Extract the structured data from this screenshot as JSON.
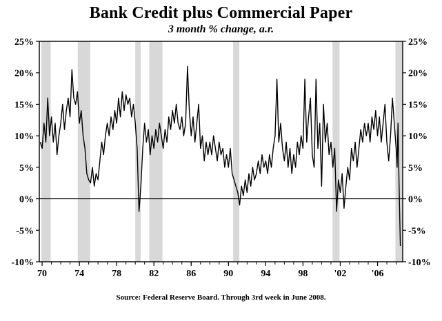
{
  "chart_data": {
    "type": "line",
    "title": "Bank Credit plus Commercial Paper",
    "subtitle": "3 month % change, a.r.",
    "source": "Source: Federal Reserve Board. Through 3rd week in June 2008.",
    "xlabel": "",
    "ylabel": "",
    "x_range": [
      1969.7,
      2008.7
    ],
    "y_range": [
      -10,
      25
    ],
    "y_ticks": [
      -10,
      -5,
      0,
      5,
      10,
      15,
      20,
      25
    ],
    "y_tick_suffix": "%",
    "x_minor_tick_step": 1,
    "x_ticks_labeled": [
      {
        "x": 1970,
        "label": "70"
      },
      {
        "x": 1974,
        "label": "74"
      },
      {
        "x": 1978,
        "label": "78"
      },
      {
        "x": 1982,
        "label": "82"
      },
      {
        "x": 1986,
        "label": "86"
      },
      {
        "x": 1990,
        "label": "90"
      },
      {
        "x": 1994,
        "label": "94"
      },
      {
        "x": 1998,
        "label": "98"
      },
      {
        "x": 2002,
        "label": "'02"
      },
      {
        "x": 2006,
        "label": "'06"
      }
    ],
    "grid": false,
    "legend": "none",
    "zero_line": true,
    "line_color": "#000000",
    "band_color": "#d8d8d8",
    "recession_bands": [
      [
        1969.92,
        1970.92
      ],
      [
        1973.83,
        1975.17
      ],
      [
        1980.0,
        1980.58
      ],
      [
        1981.5,
        1982.92
      ],
      [
        1990.5,
        1991.17
      ],
      [
        2001.17,
        2001.92
      ],
      [
        2007.92,
        2008.7
      ]
    ],
    "series": [
      {
        "name": "Bank credit plus commercial paper, 3-month % change, annualized",
        "points": [
          [
            1969.8,
            9
          ],
          [
            1970.0,
            8
          ],
          [
            1970.2,
            12
          ],
          [
            1970.4,
            9
          ],
          [
            1970.6,
            16
          ],
          [
            1970.8,
            10
          ],
          [
            1971.0,
            13
          ],
          [
            1971.2,
            9
          ],
          [
            1971.4,
            12
          ],
          [
            1971.6,
            7
          ],
          [
            1971.8,
            10
          ],
          [
            1972.0,
            12
          ],
          [
            1972.2,
            15
          ],
          [
            1972.4,
            11
          ],
          [
            1972.6,
            14
          ],
          [
            1972.8,
            16
          ],
          [
            1973.0,
            13
          ],
          [
            1973.2,
            20.5
          ],
          [
            1973.4,
            16
          ],
          [
            1973.6,
            15
          ],
          [
            1973.8,
            17
          ],
          [
            1974.0,
            12
          ],
          [
            1974.2,
            14
          ],
          [
            1974.4,
            10
          ],
          [
            1974.6,
            8
          ],
          [
            1974.8,
            4
          ],
          [
            1975.0,
            3
          ],
          [
            1975.2,
            2.5
          ],
          [
            1975.4,
            5
          ],
          [
            1975.6,
            2
          ],
          [
            1975.8,
            4
          ],
          [
            1976.0,
            3
          ],
          [
            1976.2,
            6
          ],
          [
            1976.4,
            9
          ],
          [
            1976.6,
            7
          ],
          [
            1976.8,
            10
          ],
          [
            1977.0,
            12
          ],
          [
            1977.2,
            10
          ],
          [
            1977.4,
            13
          ],
          [
            1977.6,
            11
          ],
          [
            1977.8,
            14
          ],
          [
            1978.0,
            12
          ],
          [
            1978.2,
            16
          ],
          [
            1978.4,
            13
          ],
          [
            1978.6,
            17
          ],
          [
            1978.8,
            14
          ],
          [
            1979.0,
            16.5
          ],
          [
            1979.2,
            15
          ],
          [
            1979.4,
            16
          ],
          [
            1979.6,
            13
          ],
          [
            1979.8,
            15
          ],
          [
            1980.0,
            12
          ],
          [
            1980.2,
            8
          ],
          [
            1980.4,
            -2
          ],
          [
            1980.6,
            2
          ],
          [
            1980.8,
            8
          ],
          [
            1981.0,
            12
          ],
          [
            1981.2,
            9
          ],
          [
            1981.4,
            11
          ],
          [
            1981.6,
            7
          ],
          [
            1981.8,
            10
          ],
          [
            1982.0,
            8
          ],
          [
            1982.2,
            11
          ],
          [
            1982.4,
            9
          ],
          [
            1982.6,
            12
          ],
          [
            1982.8,
            10
          ],
          [
            1983.0,
            8
          ],
          [
            1983.2,
            11
          ],
          [
            1983.4,
            9
          ],
          [
            1983.6,
            13
          ],
          [
            1983.8,
            11
          ],
          [
            1984.0,
            14
          ],
          [
            1984.2,
            12
          ],
          [
            1984.4,
            15
          ],
          [
            1984.6,
            12
          ],
          [
            1984.8,
            11
          ],
          [
            1985.0,
            13
          ],
          [
            1985.2,
            10
          ],
          [
            1985.4,
            12
          ],
          [
            1985.6,
            21
          ],
          [
            1985.8,
            14
          ],
          [
            1986.0,
            10
          ],
          [
            1986.2,
            13
          ],
          [
            1986.4,
            9
          ],
          [
            1986.6,
            12
          ],
          [
            1986.8,
            15
          ],
          [
            1987.0,
            8
          ],
          [
            1987.2,
            10
          ],
          [
            1987.4,
            6
          ],
          [
            1987.6,
            9
          ],
          [
            1987.8,
            7
          ],
          [
            1988.0,
            9
          ],
          [
            1988.2,
            7
          ],
          [
            1988.4,
            10
          ],
          [
            1988.6,
            8
          ],
          [
            1988.8,
            6
          ],
          [
            1989.0,
            9
          ],
          [
            1989.2,
            7
          ],
          [
            1989.4,
            8
          ],
          [
            1989.6,
            5
          ],
          [
            1989.8,
            7
          ],
          [
            1990.0,
            5
          ],
          [
            1990.2,
            8
          ],
          [
            1990.4,
            4
          ],
          [
            1990.6,
            3
          ],
          [
            1990.8,
            2
          ],
          [
            1991.0,
            1
          ],
          [
            1991.2,
            -1
          ],
          [
            1991.4,
            2
          ],
          [
            1991.6,
            0.5
          ],
          [
            1991.8,
            3
          ],
          [
            1992.0,
            1
          ],
          [
            1992.2,
            4
          ],
          [
            1992.4,
            2
          ],
          [
            1992.6,
            5
          ],
          [
            1992.8,
            3
          ],
          [
            1993.0,
            4
          ],
          [
            1993.2,
            6
          ],
          [
            1993.4,
            4
          ],
          [
            1993.6,
            7
          ],
          [
            1993.8,
            5
          ],
          [
            1994.0,
            6
          ],
          [
            1994.2,
            4
          ],
          [
            1994.4,
            7
          ],
          [
            1994.6,
            5
          ],
          [
            1994.8,
            8
          ],
          [
            1995.0,
            10
          ],
          [
            1995.2,
            19
          ],
          [
            1995.4,
            9
          ],
          [
            1995.6,
            12
          ],
          [
            1995.8,
            8
          ],
          [
            1996.0,
            6
          ],
          [
            1996.2,
            9
          ],
          [
            1996.4,
            5
          ],
          [
            1996.6,
            8
          ],
          [
            1996.8,
            4
          ],
          [
            1997.0,
            7
          ],
          [
            1997.2,
            5
          ],
          [
            1997.4,
            9
          ],
          [
            1997.6,
            7
          ],
          [
            1997.8,
            10
          ],
          [
            1998.0,
            8
          ],
          [
            1998.2,
            19
          ],
          [
            1998.4,
            9
          ],
          [
            1998.6,
            13
          ],
          [
            1998.8,
            16
          ],
          [
            1999.0,
            7
          ],
          [
            1999.2,
            5
          ],
          [
            1999.4,
            19
          ],
          [
            1999.6,
            8
          ],
          [
            1999.8,
            12
          ],
          [
            2000.0,
            2
          ],
          [
            2000.2,
            15
          ],
          [
            2000.4,
            9
          ],
          [
            2000.6,
            12
          ],
          [
            2000.8,
            7
          ],
          [
            2001.0,
            9
          ],
          [
            2001.2,
            5
          ],
          [
            2001.4,
            8
          ],
          [
            2001.6,
            -2
          ],
          [
            2001.8,
            3
          ],
          [
            2002.0,
            1
          ],
          [
            2002.2,
            4
          ],
          [
            2002.4,
            -1.5
          ],
          [
            2002.6,
            2
          ],
          [
            2002.8,
            5
          ],
          [
            2003.0,
            3
          ],
          [
            2003.2,
            8
          ],
          [
            2003.4,
            6
          ],
          [
            2003.6,
            9
          ],
          [
            2003.8,
            5
          ],
          [
            2004.0,
            8
          ],
          [
            2004.2,
            11
          ],
          [
            2004.4,
            9
          ],
          [
            2004.6,
            12
          ],
          [
            2004.8,
            10
          ],
          [
            2005.0,
            12
          ],
          [
            2005.2,
            9
          ],
          [
            2005.4,
            13
          ],
          [
            2005.6,
            11
          ],
          [
            2005.8,
            14
          ],
          [
            2006.0,
            10
          ],
          [
            2006.2,
            13
          ],
          [
            2006.4,
            9
          ],
          [
            2006.6,
            12
          ],
          [
            2006.8,
            15
          ],
          [
            2007.0,
            9
          ],
          [
            2007.2,
            6
          ],
          [
            2007.4,
            10
          ],
          [
            2007.6,
            16
          ],
          [
            2007.8,
            12
          ],
          [
            2008.0,
            8
          ],
          [
            2008.1,
            5
          ],
          [
            2008.2,
            12
          ],
          [
            2008.3,
            3
          ],
          [
            2008.45,
            -7.5
          ]
        ]
      }
    ]
  }
}
